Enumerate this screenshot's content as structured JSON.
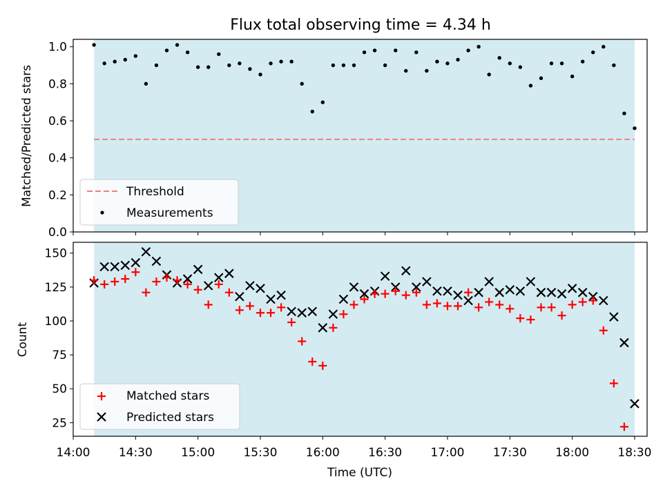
{
  "title": "Flux total observing time = 4.34 h",
  "colors": {
    "shade": "#add8e6",
    "threshold": "#f08080",
    "measurement": "#000000",
    "matched": "#ff0000",
    "predicted": "#000000"
  },
  "chart_data": [
    {
      "type": "scatter",
      "ylabel": "Matched/Predicted stars",
      "xlabel": "",
      "ylim": [
        0.0,
        1.04
      ],
      "yticks": [
        0.0,
        0.2,
        0.4,
        0.6,
        0.8,
        1.0
      ],
      "ytick_labels": [
        "0.0",
        "0.2",
        "0.4",
        "0.6",
        "0.8",
        "1.0"
      ],
      "observing_window": [
        "14:10",
        "18:30"
      ],
      "legend_position": "lower-left",
      "threshold": {
        "name": "Threshold",
        "value": 0.5,
        "style": "dashed"
      },
      "series": [
        {
          "name": "Measurements",
          "x": [
            "14:10",
            "14:15",
            "14:20",
            "14:25",
            "14:30",
            "14:35",
            "14:40",
            "14:45",
            "14:50",
            "14:55",
            "15:00",
            "15:05",
            "15:10",
            "15:15",
            "15:20",
            "15:25",
            "15:30",
            "15:35",
            "15:40",
            "15:45",
            "15:50",
            "15:55",
            "16:00",
            "16:05",
            "16:10",
            "16:15",
            "16:20",
            "16:25",
            "16:30",
            "16:35",
            "16:40",
            "16:45",
            "16:50",
            "16:55",
            "17:00",
            "17:05",
            "17:10",
            "17:15",
            "17:20",
            "17:25",
            "17:30",
            "17:35",
            "17:40",
            "17:45",
            "17:50",
            "17:55",
            "18:00",
            "18:05",
            "18:10",
            "18:15",
            "18:20",
            "18:25",
            "18:30"
          ],
          "values": [
            1.01,
            0.91,
            0.92,
            0.93,
            0.95,
            0.8,
            0.9,
            0.98,
            1.01,
            0.97,
            0.89,
            0.89,
            0.96,
            0.9,
            0.91,
            0.88,
            0.85,
            0.91,
            0.92,
            0.92,
            0.8,
            0.65,
            0.7,
            0.9,
            0.9,
            0.9,
            0.97,
            0.98,
            0.9,
            0.98,
            0.87,
            0.97,
            0.87,
            0.92,
            0.91,
            0.93,
            0.98,
            1.0,
            0.85,
            0.94,
            0.91,
            0.89,
            0.79,
            0.83,
            0.91,
            0.91,
            0.84,
            0.92,
            0.97,
            1.0,
            0.9,
            0.64,
            0.56
          ]
        }
      ]
    },
    {
      "type": "scatter",
      "xlabel": "Time (UTC)",
      "ylabel": "Count",
      "ylim": [
        15,
        158
      ],
      "yticks": [
        25,
        50,
        75,
        100,
        125,
        150
      ],
      "ytick_labels": [
        "25",
        "50",
        "75",
        "100",
        "125",
        "150"
      ],
      "xlim": [
        "14:00",
        "18:36"
      ],
      "xticks": [
        "14:00",
        "14:30",
        "15:00",
        "15:30",
        "16:00",
        "16:30",
        "17:00",
        "17:30",
        "18:00",
        "18:30"
      ],
      "xtick_labels": [
        "14:00",
        "14:30",
        "15:00",
        "15:30",
        "16:00",
        "16:30",
        "17:00",
        "17:30",
        "18:00",
        "18:30"
      ],
      "observing_window": [
        "14:10",
        "18:30"
      ],
      "legend_position": "lower-left",
      "x": [
        "14:10",
        "14:15",
        "14:20",
        "14:25",
        "14:30",
        "14:35",
        "14:40",
        "14:45",
        "14:50",
        "14:55",
        "15:00",
        "15:05",
        "15:10",
        "15:15",
        "15:20",
        "15:25",
        "15:30",
        "15:35",
        "15:40",
        "15:45",
        "15:50",
        "15:55",
        "16:00",
        "16:05",
        "16:10",
        "16:15",
        "16:20",
        "16:25",
        "16:30",
        "16:35",
        "16:40",
        "16:45",
        "16:50",
        "16:55",
        "17:00",
        "17:05",
        "17:10",
        "17:15",
        "17:20",
        "17:25",
        "17:30",
        "17:35",
        "17:40",
        "17:45",
        "17:50",
        "17:55",
        "18:00",
        "18:05",
        "18:10",
        "18:15",
        "18:20",
        "18:25",
        "18:30"
      ],
      "series": [
        {
          "name": "Matched stars",
          "marker": "plus",
          "values": [
            130,
            127,
            129,
            131,
            136,
            121,
            129,
            132,
            130,
            127,
            123,
            112,
            127,
            121,
            108,
            111,
            106,
            106,
            110,
            99,
            85,
            70,
            67,
            95,
            105,
            112,
            116,
            120,
            120,
            122,
            119,
            121,
            112,
            113,
            111,
            111,
            121,
            110,
            114,
            112,
            109,
            102,
            101,
            110,
            110,
            104,
            112,
            114,
            115,
            93,
            54,
            22,
            null
          ]
        },
        {
          "name": "Predicted stars",
          "marker": "x",
          "values": [
            128,
            140,
            140,
            141,
            143,
            151,
            144,
            134,
            128,
            131,
            138,
            126,
            132,
            135,
            118,
            126,
            124,
            116,
            119,
            107,
            106,
            107,
            95,
            105,
            116,
            125,
            120,
            122,
            133,
            125,
            137,
            125,
            129,
            122,
            122,
            119,
            115,
            121,
            129,
            121,
            123,
            122,
            129,
            121,
            121,
            120,
            124,
            121,
            118,
            115,
            103,
            84,
            39
          ]
        }
      ]
    }
  ]
}
